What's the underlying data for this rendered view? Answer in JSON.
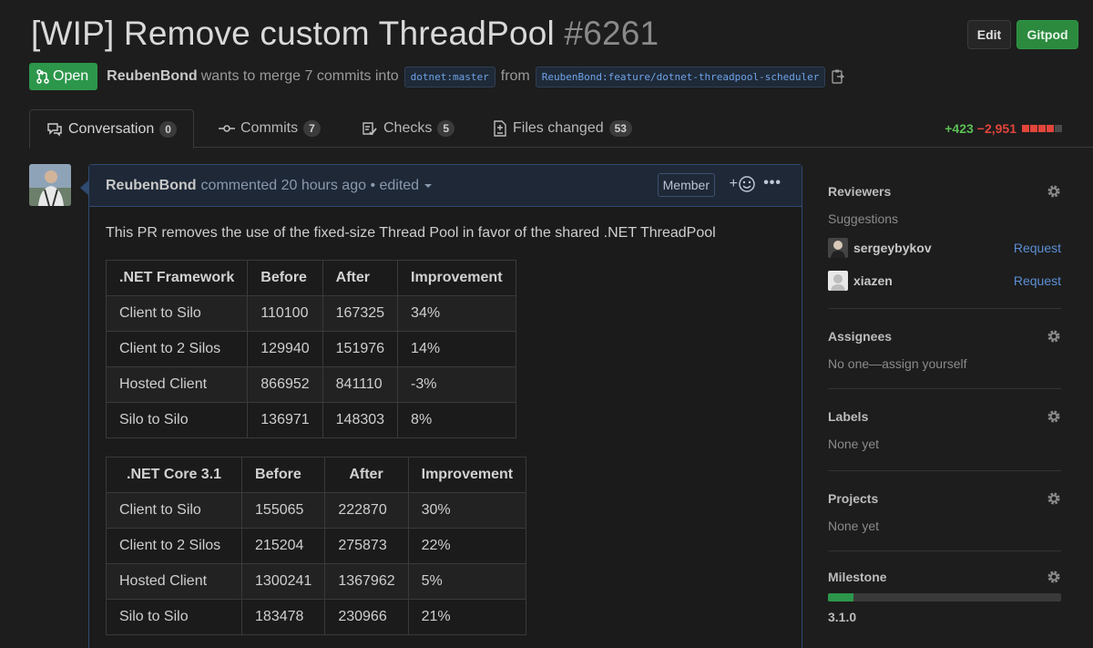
{
  "pr": {
    "title": "[WIP] Remove custom ThreadPool",
    "number": "#6261",
    "state": "Open",
    "author": "ReubenBond",
    "merge_text": "wants to merge 7 commits into",
    "base_branch": "dotnet:master",
    "from_text": "from",
    "head_branch": "ReubenBond:feature/dotnet-threadpool-scheduler"
  },
  "buttons": {
    "edit": "Edit",
    "gitpod": "Gitpod"
  },
  "tabs": [
    {
      "label": "Conversation",
      "count": "0"
    },
    {
      "label": "Commits",
      "count": "7"
    },
    {
      "label": "Checks",
      "count": "5"
    },
    {
      "label": "Files changed",
      "count": "53"
    }
  ],
  "diffstat": {
    "additions": "+423",
    "deletions": "−2,951"
  },
  "comment": {
    "author": "ReubenBond",
    "meta": "commented 20 hours ago • edited",
    "role": "Member",
    "body": "This PR removes the use of the fixed-size Thread Pool in favor of the shared .NET ThreadPool"
  },
  "tables": [
    {
      "headers": [
        ".NET Framework",
        "Before",
        "After",
        "Improvement"
      ],
      "rows": [
        [
          "Client to Silo",
          "110100",
          "167325",
          "34%"
        ],
        [
          "Client to 2 Silos",
          "129940",
          "151976",
          "14%"
        ],
        [
          "Hosted Client",
          "866952",
          "841110",
          "-3%"
        ],
        [
          "Silo to Silo",
          "136971",
          "148303",
          "8%"
        ]
      ]
    },
    {
      "headers": [
        ".NET Core 3.1",
        "Before",
        "After",
        "Improvement"
      ],
      "rows": [
        [
          "Client to Silo",
          "155065",
          "222870",
          "30%"
        ],
        [
          "Client to 2 Silos",
          "215204",
          "275873",
          "22%"
        ],
        [
          "Hosted Client",
          "1300241",
          "1367962",
          "5%"
        ],
        [
          "Silo to Silo",
          "183478",
          "230966",
          "21%"
        ]
      ]
    }
  ],
  "sidebar": {
    "reviewers": {
      "title": "Reviewers",
      "subtitle": "Suggestions",
      "people": [
        {
          "name": "sergeybykov",
          "action": "Request"
        },
        {
          "name": "xiazen",
          "action": "Request"
        }
      ]
    },
    "assignees": {
      "title": "Assignees",
      "value": "No one—assign yourself"
    },
    "labels": {
      "title": "Labels",
      "value": "None yet"
    },
    "projects": {
      "title": "Projects",
      "value": "None yet"
    },
    "milestone": {
      "title": "Milestone",
      "value": "3.1.0",
      "progress": 0.11
    }
  },
  "colors": {
    "open": "#2c974b",
    "additions": "#5cbf55",
    "deletions": "#e2453b",
    "link": "#5b8fd4"
  }
}
